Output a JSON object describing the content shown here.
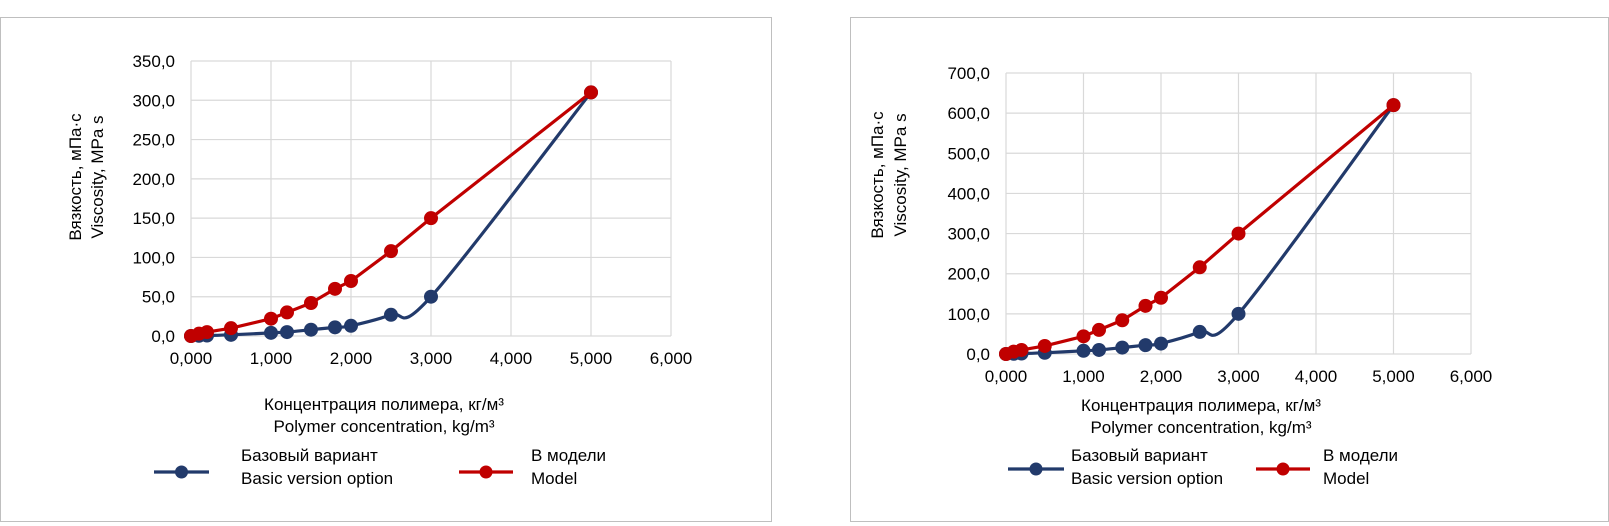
{
  "chart_data": [
    {
      "type": "line",
      "xlabel": [
        "Концентрация полимера, кг/м³",
        "Polymer concentration, kg/m³"
      ],
      "ylabel": [
        "Вязкость, мПа·с",
        "Viscosity, MPa s"
      ],
      "xlim": [
        0,
        6
      ],
      "ylim": [
        0,
        350
      ],
      "xticks": [
        0,
        1,
        2,
        3,
        4,
        5,
        6
      ],
      "yticks": [
        0,
        50,
        100,
        150,
        200,
        250,
        300,
        350
      ],
      "xtick_labels": [
        "0,000",
        "1,000",
        "2,000",
        "3,000",
        "4,000",
        "5,000",
        "6,000"
      ],
      "ytick_labels": [
        "0,0",
        "50,0",
        "100,0",
        "150,0",
        "200,0",
        "250,0",
        "300,0",
        "350,0"
      ],
      "grid": true,
      "legend_position": "bottom",
      "series": [
        {
          "name": [
            "Базовый вариант",
            "Basic version option"
          ],
          "color": "#223a6b",
          "smooth": true,
          "x": [
            0,
            0.1,
            0.2,
            0.5,
            1.0,
            1.2,
            1.5,
            1.8,
            2.0,
            2.5,
            3.0,
            5.0
          ],
          "y": [
            0,
            0.3,
            0.6,
            1.5,
            4,
            5,
            8,
            11,
            13,
            27,
            50,
            310
          ]
        },
        {
          "name": [
            "В модели",
            "Model"
          ],
          "color": "#c00000",
          "smooth": false,
          "x": [
            0,
            0.1,
            0.2,
            0.5,
            1.0,
            1.2,
            1.5,
            1.8,
            2.0,
            2.5,
            3.0,
            5.0
          ],
          "y": [
            0,
            3,
            5,
            10,
            22,
            30,
            42,
            60,
            70,
            108,
            150,
            310
          ]
        }
      ]
    },
    {
      "type": "line",
      "xlabel": [
        "Концентрация полимера, кг/м³",
        "Polymer concentration, kg/m³"
      ],
      "ylabel": [
        "Вязкость, мПа·с",
        "Viscosity, MPa s"
      ],
      "xlim": [
        0,
        6
      ],
      "ylim": [
        0,
        700
      ],
      "xticks": [
        0,
        1,
        2,
        3,
        4,
        5,
        6
      ],
      "yticks": [
        0,
        100,
        200,
        300,
        400,
        500,
        600,
        700
      ],
      "xtick_labels": [
        "0,000",
        "1,000",
        "2,000",
        "3,000",
        "4,000",
        "5,000",
        "6,000"
      ],
      "ytick_labels": [
        "0,0",
        "100,0",
        "200,0",
        "300,0",
        "400,0",
        "500,0",
        "600,0",
        "700,0"
      ],
      "grid": true,
      "legend_position": "bottom",
      "series": [
        {
          "name": [
            "Базовый вариант",
            "Basic version option"
          ],
          "color": "#223a6b",
          "smooth": true,
          "x": [
            0,
            0.1,
            0.2,
            0.5,
            1.0,
            1.2,
            1.5,
            1.8,
            2.0,
            2.5,
            3.0,
            5.0
          ],
          "y": [
            0,
            0.6,
            1.2,
            3,
            8,
            10,
            16,
            22,
            26,
            55,
            100,
            620
          ]
        },
        {
          "name": [
            "В модели",
            "Model"
          ],
          "color": "#c00000",
          "smooth": false,
          "x": [
            0,
            0.1,
            0.2,
            0.5,
            1.0,
            1.2,
            1.5,
            1.8,
            2.0,
            2.5,
            3.0,
            5.0
          ],
          "y": [
            0,
            6,
            10,
            20,
            44,
            60,
            84,
            120,
            140,
            216,
            300,
            620
          ]
        }
      ]
    }
  ]
}
